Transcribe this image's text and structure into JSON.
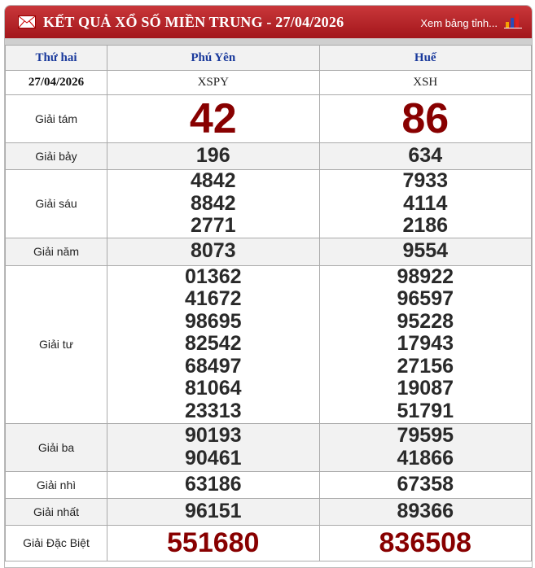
{
  "header": {
    "title": "KẾT QUẢ XỔ SỐ MIỀN TRUNG - 27/04/2026",
    "more_link": "Xem bảng tỉnh...",
    "icons": [
      "mail-icon",
      "bar-chart-icon"
    ],
    "color": "#b3222a"
  },
  "table": {
    "columns": [
      "Thứ hai",
      "Phú Yên",
      "Huế"
    ],
    "date_row": [
      "27/04/2026",
      "XSPY",
      "XSH"
    ],
    "prizes": [
      {
        "label": "Giải tám",
        "phu_yen": [
          "42"
        ],
        "hue": [
          "86"
        ]
      },
      {
        "label": "Giải bảy",
        "phu_yen": [
          "196"
        ],
        "hue": [
          "634"
        ]
      },
      {
        "label": "Giải sáu",
        "phu_yen": [
          "4842",
          "8842",
          "2771"
        ],
        "hue": [
          "7933",
          "4114",
          "2186"
        ]
      },
      {
        "label": "Giải năm",
        "phu_yen": [
          "8073"
        ],
        "hue": [
          "9554"
        ]
      },
      {
        "label": "Giải tư",
        "phu_yen": [
          "01362",
          "41672",
          "98695",
          "82542",
          "68497",
          "81064",
          "23313"
        ],
        "hue": [
          "98922",
          "96597",
          "95228",
          "17943",
          "27156",
          "19087",
          "51791"
        ]
      },
      {
        "label": "Giải ba",
        "phu_yen": [
          "90193",
          "90461"
        ],
        "hue": [
          "79595",
          "41866"
        ]
      },
      {
        "label": "Giải nhì",
        "phu_yen": [
          "63186"
        ],
        "hue": [
          "67358"
        ]
      },
      {
        "label": "Giải nhất",
        "phu_yen": [
          "96151"
        ],
        "hue": [
          "89366"
        ]
      },
      {
        "label": "Giải Đặc Biệt",
        "phu_yen": [
          "551680"
        ],
        "hue": [
          "836508"
        ]
      }
    ],
    "highlight_color": "#880000"
  }
}
